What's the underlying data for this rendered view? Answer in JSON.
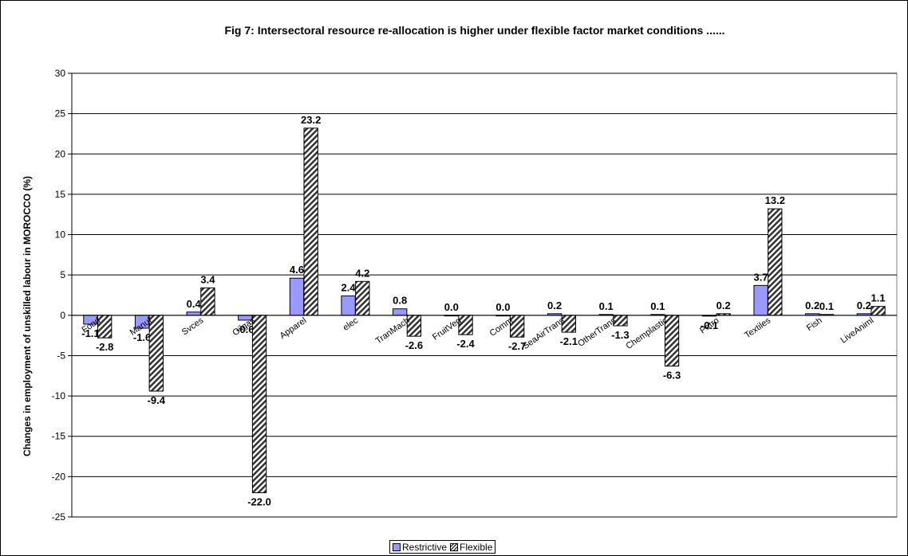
{
  "chart_data": {
    "type": "bar",
    "title": "Fig 7: Intersectoral resource re-allocation is higher under flexible factor market conditions ......",
    "ylabel": "Changes in employment of unskilled labour in MOROCCO (%)",
    "xlabel": "",
    "ylim": [
      -25,
      30
    ],
    "yticks": [
      30,
      25,
      20,
      15,
      10,
      5,
      0,
      -5,
      -10,
      -15,
      -20,
      -25
    ],
    "grid": true,
    "legend_position": "bottom",
    "categories": [
      "Food",
      "Manuf",
      "Svces",
      "Oilgas",
      "Apparel",
      "elec",
      "TranMach",
      "FruitVeg",
      "Comm",
      "SeaAirTrans",
      "OtherTrans",
      "Chemplastic",
      "Petro",
      "Textiles",
      "Fish",
      "LiveAniml"
    ],
    "series": [
      {
        "name": "Restrictive",
        "color": "#9999ff",
        "pattern": "solid",
        "values": [
          -1.1,
          -1.6,
          0.4,
          -0.6,
          4.6,
          2.4,
          0.8,
          0.0,
          0.0,
          0.2,
          0.1,
          0.1,
          -0.1,
          3.7,
          0.2,
          0.2
        ],
        "labels": [
          "-1.1",
          "-1.6",
          "0.4",
          "-0.6",
          "4.6",
          "2.4",
          "0.8",
          "0.0",
          "0.0",
          "0.2",
          "0.1",
          "0.1",
          "-0.1",
          "3.7",
          "0.2",
          "0.2"
        ]
      },
      {
        "name": "Flexible",
        "color": "#333333",
        "pattern": "diagonal-hatch",
        "values": [
          -2.8,
          -9.4,
          3.4,
          -22.0,
          23.2,
          4.2,
          -2.6,
          -2.4,
          -2.7,
          -2.1,
          -1.3,
          -6.3,
          0.2,
          13.2,
          0.1,
          1.1
        ],
        "labels": [
          "-2.8",
          "-9.4",
          "3.4",
          "-22.0",
          "23.2",
          "4.2",
          "-2.6",
          "-2.4",
          "-2.7",
          "-2.1",
          "-1.3",
          "-6.3",
          "0.2",
          "13.2",
          "0.1",
          "1.1"
        ]
      }
    ]
  },
  "legend": {
    "restrictive": "Restrictive",
    "flexible": "Flexible"
  }
}
